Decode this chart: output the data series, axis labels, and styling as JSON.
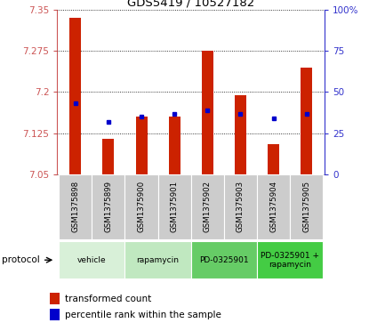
{
  "title": "GDS5419 / 10527182",
  "samples": [
    "GSM1375898",
    "GSM1375899",
    "GSM1375900",
    "GSM1375901",
    "GSM1375902",
    "GSM1375903",
    "GSM1375904",
    "GSM1375905"
  ],
  "transformed_counts": [
    7.335,
    7.115,
    7.155,
    7.155,
    7.275,
    7.195,
    7.105,
    7.245
  ],
  "percentile_ranks": [
    43,
    32,
    35,
    37,
    39,
    37,
    34,
    37
  ],
  "ylim_left": [
    7.05,
    7.35
  ],
  "ylim_right": [
    0,
    100
  ],
  "yticks_left": [
    7.05,
    7.125,
    7.2,
    7.275,
    7.35
  ],
  "yticks_right": [
    0,
    25,
    50,
    75,
    100
  ],
  "protocols": [
    {
      "label": "vehicle",
      "samples": [
        0,
        1
      ],
      "color": "#d8f0d8"
    },
    {
      "label": "rapamycin",
      "samples": [
        2,
        3
      ],
      "color": "#c0e8c0"
    },
    {
      "label": "PD-0325901",
      "samples": [
        4,
        5
      ],
      "color": "#66cc66"
    },
    {
      "label": "PD-0325901 +\nrapamycin",
      "samples": [
        6,
        7
      ],
      "color": "#44cc44"
    }
  ],
  "bar_color": "#cc2200",
  "dot_color": "#0000cc",
  "bar_width": 0.35,
  "base_value": 7.05,
  "legend_label_bar": "transformed count",
  "legend_label_dot": "percentile rank within the sample",
  "protocol_label": "protocol",
  "left_axis_color": "#cc5555",
  "right_axis_color": "#3333cc",
  "sample_bg_color": "#cccccc"
}
